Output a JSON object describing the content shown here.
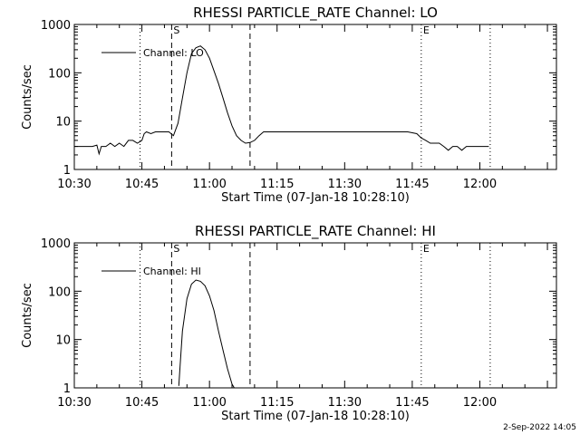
{
  "footer": {
    "timestamp": "2-Sep-2022 14:05"
  },
  "chart_data": [
    {
      "type": "line",
      "title": "RHESSI PARTICLE_RATE Channel: LO",
      "xlabel": "Start Time (07-Jan-18 10:28:10)",
      "ylabel": "Counts/sec",
      "yscale": "log",
      "ylim": [
        1,
        1000
      ],
      "xlim_min": [
        30,
        137
      ],
      "yticks": [
        "1",
        "10",
        "100",
        "1000"
      ],
      "xticks": [
        {
          "label": "10:30",
          "min": 30
        },
        {
          "label": "10:45",
          "min": 45
        },
        {
          "label": "11:00",
          "min": 60
        },
        {
          "label": "11:15",
          "min": 75
        },
        {
          "label": "11:30",
          "min": 90
        },
        {
          "label": "11:45",
          "min": 105
        },
        {
          "label": "12:00",
          "min": 120
        }
      ],
      "legend": {
        "text": "Channel: LO",
        "placement": "top-left"
      },
      "markers": [
        {
          "min": 44.6,
          "style": "dotted",
          "label": ""
        },
        {
          "min": 51.6,
          "style": "dashed",
          "label": "S"
        },
        {
          "min": 69.0,
          "style": "dashed",
          "label": ""
        },
        {
          "min": 107.0,
          "style": "dotted",
          "label": "E"
        },
        {
          "min": 122.3,
          "style": "dotted",
          "label": ""
        }
      ],
      "series": [
        {
          "x": [
            30,
            31,
            32,
            33,
            34,
            35,
            35.5,
            36,
            37,
            38,
            39,
            40,
            41,
            42,
            43,
            44,
            45,
            45.5,
            46,
            47,
            48,
            49,
            50,
            51,
            52,
            53,
            54,
            55,
            56,
            57,
            58,
            59,
            60,
            61,
            62,
            63,
            64,
            65,
            66,
            67,
            68,
            69,
            70,
            71,
            72,
            74,
            76,
            78,
            80,
            82,
            84,
            86,
            88,
            90,
            92,
            94,
            96,
            98,
            100,
            102,
            104,
            106,
            107,
            108,
            109,
            110,
            111,
            112,
            113,
            114,
            115,
            116,
            117,
            118,
            119,
            120,
            121,
            122
          ],
          "y": [
            3,
            3,
            3,
            3,
            3,
            3.2,
            2.1,
            3,
            3,
            3.5,
            3,
            3.5,
            3,
            4,
            4,
            3.5,
            4,
            5.5,
            6,
            5.5,
            6,
            6,
            6,
            6,
            5,
            9,
            30,
            100,
            250,
            330,
            360,
            300,
            200,
            110,
            60,
            30,
            15,
            8,
            5,
            4,
            3.5,
            3.6,
            4,
            5,
            6,
            6,
            6,
            6,
            6,
            6,
            6,
            6,
            6,
            6,
            6,
            6,
            6,
            6,
            6,
            6,
            6,
            5.5,
            4.5,
            4,
            3.5,
            3.5,
            3.5,
            3,
            2.5,
            3,
            3,
            2.5,
            3,
            3,
            3,
            3,
            3,
            3
          ]
        }
      ]
    },
    {
      "type": "line",
      "title": "RHESSI PARTICLE_RATE Channel: HI",
      "xlabel": "Start Time (07-Jan-18 10:28:10)",
      "ylabel": "Counts/sec",
      "yscale": "log",
      "ylim": [
        1,
        1000
      ],
      "xlim_min": [
        30,
        137
      ],
      "yticks": [
        "1",
        "10",
        "100",
        "1000"
      ],
      "xticks": [
        {
          "label": "10:30",
          "min": 30
        },
        {
          "label": "10:45",
          "min": 45
        },
        {
          "label": "11:00",
          "min": 60
        },
        {
          "label": "11:15",
          "min": 75
        },
        {
          "label": "11:30",
          "min": 90
        },
        {
          "label": "11:45",
          "min": 105
        },
        {
          "label": "12:00",
          "min": 120
        }
      ],
      "legend": {
        "text": "Channel: HI",
        "placement": "top-left"
      },
      "markers": [
        {
          "min": 44.6,
          "style": "dotted",
          "label": ""
        },
        {
          "min": 51.6,
          "style": "dashed",
          "label": "S"
        },
        {
          "min": 69.0,
          "style": "dashed",
          "label": ""
        },
        {
          "min": 107.0,
          "style": "dotted",
          "label": "E"
        },
        {
          "min": 122.3,
          "style": "dotted",
          "label": ""
        }
      ],
      "series": [
        {
          "x": [
            53.2,
            53.5,
            54,
            55,
            56,
            57,
            58,
            59,
            60,
            61,
            62,
            63,
            64,
            65,
            65.5
          ],
          "y": [
            1.1,
            3,
            15,
            70,
            140,
            170,
            160,
            130,
            80,
            40,
            15,
            6,
            2.5,
            1.2,
            1.0
          ]
        }
      ]
    }
  ]
}
